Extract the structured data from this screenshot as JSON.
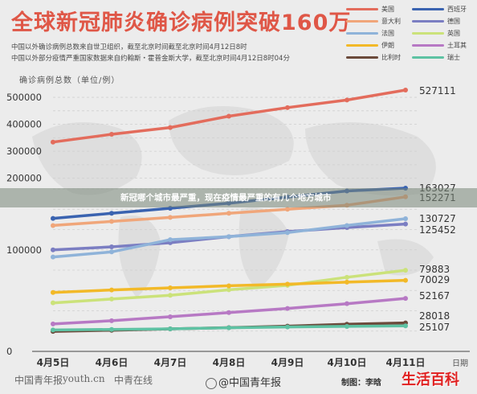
{
  "header": {
    "title": "全球新冠肺炎确诊病例突破160万",
    "source_lines": [
      "中国以外确诊病例总数来自世卫组织，截至北京时间截至北京时间4月12日8时",
      "中国以外部分疫情严重国家数据来自约翰斯・霍普金斯大学，截至北京时间4月12日8时04分"
    ]
  },
  "banner": "新冠哪个城市最严重，现在疫情最严重的有几个地方城市",
  "footer": {
    "logos": [
      "中国青年报",
      "youth.cn",
      "中青在线"
    ],
    "weibo": "@中国青年报",
    "credit": "制图：李晗",
    "watermark": "生活百科"
  },
  "chart_data": {
    "type": "line",
    "title": "全球新冠肺炎确诊病例突破160万",
    "ylabel": "确诊病例总数（单位/例）",
    "xlabel": "日期",
    "categories": [
      "4月5日",
      "4月6日",
      "4月7日",
      "4月8日",
      "4月9日",
      "4月10日",
      "4月11日"
    ],
    "yticks": [
      0,
      100000,
      200000,
      300000,
      400000,
      500000
    ],
    "ytick_labels": [
      "0",
      "100000",
      "200000",
      "300000",
      "400000",
      "500000"
    ],
    "legend_position": "top-right",
    "series": [
      {
        "name": "美国",
        "color": "#e36c5c",
        "values": [
          334000,
          363000,
          388000,
          430000,
          462000,
          490000,
          527111
        ],
        "end_label": "527111"
      },
      {
        "name": "西班牙",
        "color": "#3a63b0",
        "values": [
          131000,
          136000,
          141000,
          146000,
          152000,
          158000,
          163027
        ],
        "end_label": "163027"
      },
      {
        "name": "意大利",
        "color": "#f0a67a",
        "values": [
          124000,
          128000,
          132000,
          136000,
          140000,
          144000,
          152271
        ],
        "end_label": "152271"
      },
      {
        "name": "德国",
        "color": "#7b7ec2",
        "values": [
          100000,
          103000,
          107000,
          113000,
          118000,
          122000,
          125452
        ],
        "end_label": "125452"
      },
      {
        "name": "法国",
        "color": "#8fb3d9",
        "values": [
          93000,
          98000,
          110000,
          113000,
          117000,
          124000,
          130727
        ],
        "end_label": "130727"
      },
      {
        "name": "英国",
        "color": "#cbe27a",
        "values": [
          47800,
          51600,
          55200,
          60700,
          65000,
          73000,
          79883
        ],
        "end_label": "79883"
      },
      {
        "name": "伊朗",
        "color": "#f2b928",
        "values": [
          58000,
          60500,
          62600,
          64600,
          66200,
          68200,
          70029
        ],
        "end_label": "70029"
      },
      {
        "name": "土耳其",
        "color": "#b779c4",
        "values": [
          27000,
          30200,
          34100,
          38200,
          42300,
          47000,
          52167
        ],
        "end_label": "52167"
      },
      {
        "name": "比利时",
        "color": "#6b4a3b",
        "values": [
          19700,
          20800,
          22200,
          23400,
          24900,
          26700,
          28018
        ],
        "end_label": "28018"
      },
      {
        "name": "瑞士",
        "color": "#5ec2a3",
        "values": [
          21100,
          21600,
          22200,
          23300,
          24100,
          24600,
          25107
        ],
        "end_label": "25107"
      }
    ]
  }
}
